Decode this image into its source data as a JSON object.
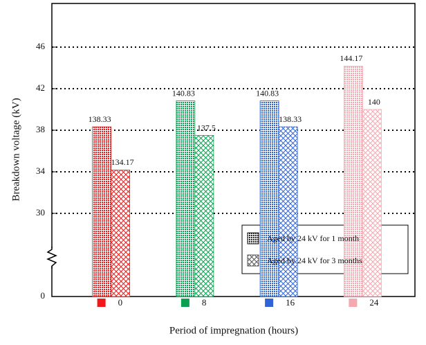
{
  "chart_data": {
    "type": "bar",
    "x_label": "Period of impregnation (hours)",
    "y_label": "Breakdown voltage (kV)",
    "categories": [
      "0",
      "8",
      "16",
      "24"
    ],
    "colors": [
      "#f01818",
      "#0aa050",
      "#2f63d6",
      "#f5a8b0"
    ],
    "series": [
      {
        "name": "Aged by 24 kV for 1 month",
        "pattern": "dots",
        "color": "#222222",
        "values": [
          138.33,
          140.83,
          140.83,
          144.17
        ],
        "value_labels": [
          "138.33",
          "140.83",
          "140.83",
          "144.17"
        ]
      },
      {
        "name": "Aged by 24 kV for 3 months",
        "pattern": "crosshatch",
        "color": "#555555",
        "values": [
          134.17,
          137.5,
          138.33,
          140
        ],
        "value_labels": [
          "134.17",
          "137.5",
          "138.33",
          "140"
        ]
      }
    ],
    "ylim": [
      0,
      150.2
    ],
    "yticks": [
      0,
      {
        "value": 130,
        "label": "30"
      },
      {
        "value": 134,
        "label": "34"
      },
      {
        "value": 138,
        "label": "38"
      },
      {
        "value": 142,
        "label": "42"
      },
      {
        "value": 146,
        "label": "46"
      }
    ],
    "axis_break": true,
    "grid": true
  }
}
